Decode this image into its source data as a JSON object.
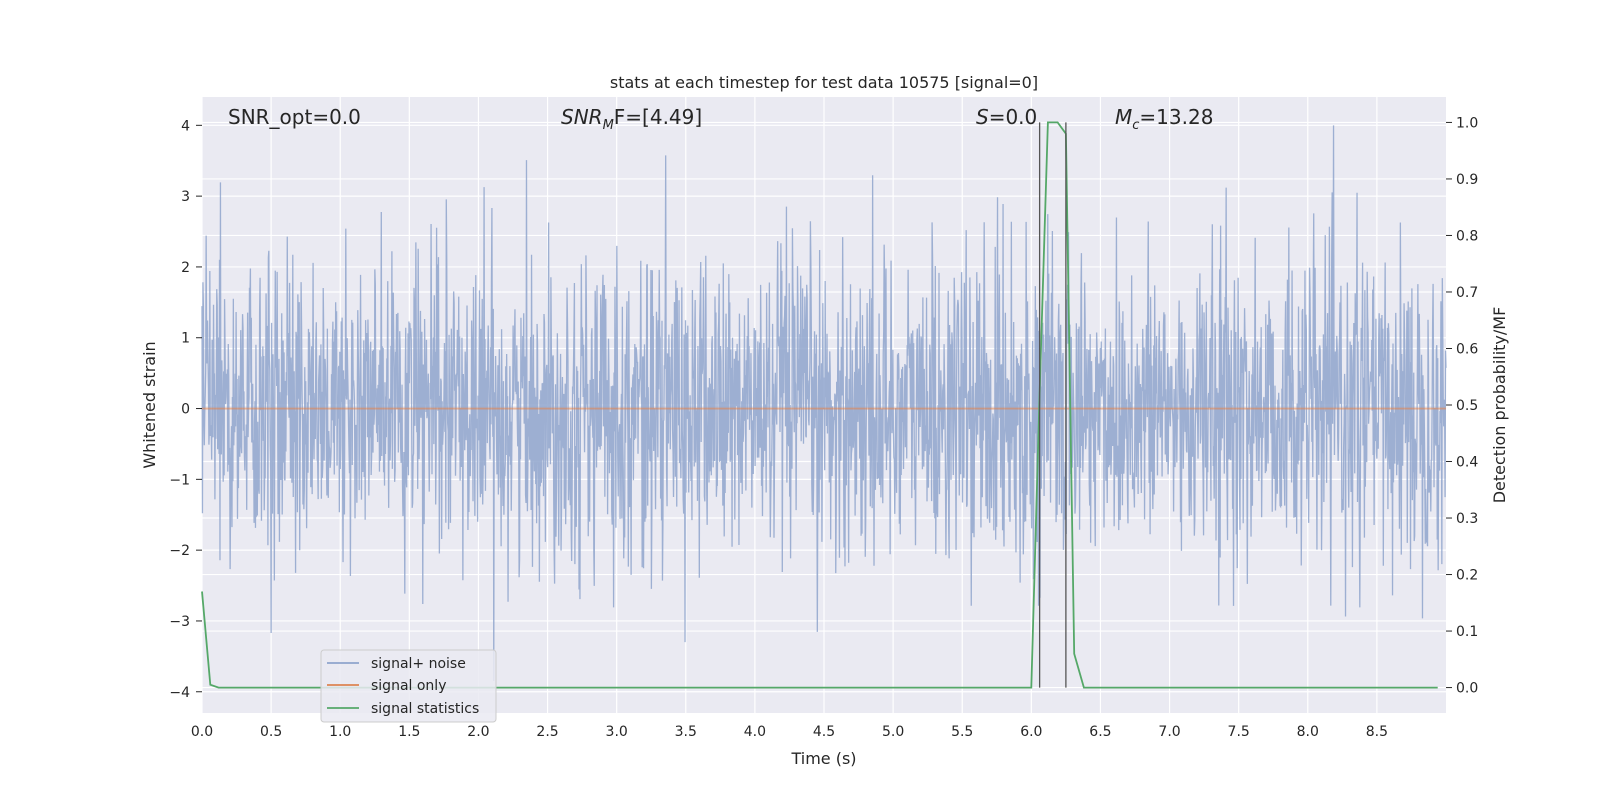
{
  "chart_data": {
    "type": "line",
    "title": "stats at each timestep for test data 10575 [signal=0]",
    "xlabel": "Time (s)",
    "ylabel": "Whitened strain",
    "y2label": "Detection probability/MF",
    "xlim": [
      0,
      9.0
    ],
    "ylim": [
      -4.3,
      4.4
    ],
    "y2lim": [
      -0.045,
      1.045
    ],
    "xticks": [
      0.0,
      0.5,
      1.0,
      1.5,
      2.0,
      2.5,
      3.0,
      3.5,
      4.0,
      4.5,
      5.0,
      5.5,
      6.0,
      6.5,
      7.0,
      7.5,
      8.0,
      8.5
    ],
    "xtick_labels": [
      "0.0",
      "0.5",
      "1.0",
      "1.5",
      "2.0",
      "2.5",
      "3.0",
      "3.5",
      "4.0",
      "4.5",
      "5.0",
      "5.5",
      "6.0",
      "6.5",
      "7.0",
      "7.5",
      "8.0",
      "8.5"
    ],
    "yticks": [
      4,
      3,
      2,
      1,
      0,
      -1,
      -2,
      -3,
      -4
    ],
    "ytick_labels": [
      "4",
      "3",
      "2",
      "1",
      "0",
      "−1",
      "−2",
      "−3",
      "−4"
    ],
    "y2ticks": [
      1.0,
      0.9,
      0.8,
      0.7,
      0.6,
      0.5,
      0.4,
      0.3,
      0.2,
      0.1,
      0.0
    ],
    "y2tick_labels": [
      "1.0",
      "0.9",
      "0.8",
      "0.7",
      "0.6",
      "0.5",
      "0.4",
      "0.3",
      "0.2",
      "0.1",
      "0.0"
    ],
    "grid": true,
    "legend_position": "lower-left",
    "annotations": {
      "snr_opt": "SNR_opt=0.0",
      "snr_mf_main": "SNR",
      "snr_mf_sub": "M",
      "snr_mf_rest": "F=[4.49]",
      "s_main": "S",
      "s_rest": "=0.0",
      "mc_main": "M",
      "mc_sub": "c",
      "mc_rest": "=13.28"
    },
    "vertical_lines_x": [
      6.06,
      6.25
    ],
    "series": [
      {
        "name": "signal+ noise",
        "color": "#8fa4cc",
        "kind": "noise",
        "description_values": {
          "sample_rate_hz": 300,
          "envelope_min": -3.9,
          "envelope_max": 4.0
        }
      },
      {
        "name": "signal only",
        "color": "#dd8452",
        "x": [
          0.0,
          9.0
        ],
        "y": [
          0.0,
          0.0
        ]
      },
      {
        "name": "signal statistics",
        "color": "#55a868",
        "axis": "right",
        "x": [
          0.0,
          0.06,
          0.12,
          0.5,
          1.0,
          2.0,
          3.0,
          4.0,
          5.0,
          5.5,
          5.94,
          6.0,
          6.06,
          6.12,
          6.19,
          6.25,
          6.31,
          6.38,
          6.5,
          7.0,
          7.5,
          8.0,
          8.5,
          8.94
        ],
        "y": [
          0.17,
          0.005,
          0.0,
          0.0,
          0.0,
          0.0,
          0.0,
          0.0,
          0.0,
          0.0,
          0.0,
          0.0,
          0.52,
          1.0,
          1.0,
          0.98,
          0.06,
          0.0,
          0.0,
          0.0,
          0.0,
          0.0,
          0.0,
          0.0
        ]
      }
    ]
  }
}
